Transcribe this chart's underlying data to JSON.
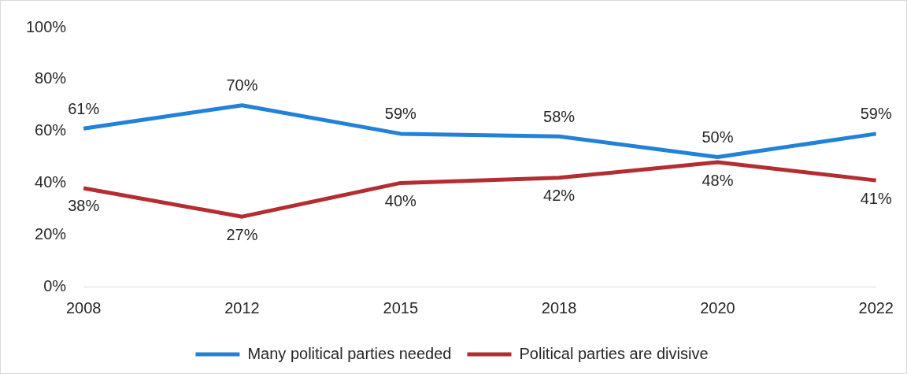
{
  "chart_data": {
    "type": "line",
    "categories": [
      "2008",
      "2012",
      "2015",
      "2018",
      "2020",
      "2022"
    ],
    "series": [
      {
        "name": "Many political parties needed",
        "color": "#2281d8",
        "values": [
          61,
          70,
          59,
          58,
          50,
          59
        ],
        "value_labels": [
          "61%",
          "70%",
          "59%",
          "58%",
          "50%",
          "59%"
        ]
      },
      {
        "name": "Political parties are divisive",
        "color": "#b32d33",
        "values": [
          38,
          27,
          40,
          42,
          48,
          41
        ],
        "value_labels": [
          "38%",
          "27%",
          "40%",
          "42%",
          "48%",
          "41%"
        ]
      }
    ],
    "ylim": [
      0,
      100
    ],
    "yticks": [
      {
        "value": 0,
        "label": "0%"
      },
      {
        "value": 20,
        "label": "20%"
      },
      {
        "value": 40,
        "label": "40%"
      },
      {
        "value": 60,
        "label": "60%"
      },
      {
        "value": 80,
        "label": "80%"
      },
      {
        "value": 100,
        "label": "100%"
      }
    ],
    "grid": false,
    "legend": "bottom",
    "marker": "none",
    "line_style": "solid"
  }
}
